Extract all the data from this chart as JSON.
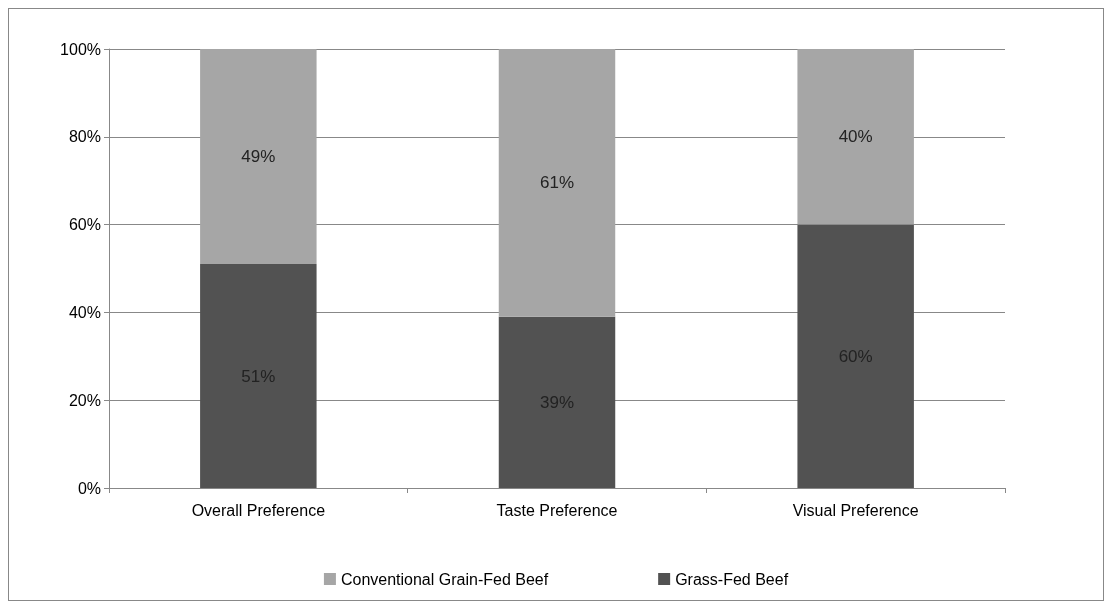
{
  "chart_data": {
    "type": "bar",
    "stacked": true,
    "categories": [
      "Overall Preference",
      "Taste Preference",
      "Visual Preference"
    ],
    "series": [
      {
        "name": "Grass-Fed Beef",
        "color": "#525252",
        "values": [
          51,
          39,
          60
        ]
      },
      {
        "name": "Conventional Grain-Fed Beef",
        "color": "#a6a6a6",
        "values": [
          49,
          61,
          40
        ]
      }
    ],
    "value_labels": [
      [
        "51%",
        "39%",
        "60%"
      ],
      [
        "49%",
        "61%",
        "40%"
      ]
    ],
    "ylim": [
      0,
      100
    ],
    "yticks": [
      {
        "value": 0,
        "label": "0%"
      },
      {
        "value": 20,
        "label": "20%"
      },
      {
        "value": 40,
        "label": "40%"
      },
      {
        "value": 60,
        "label": "60%"
      },
      {
        "value": 80,
        "label": "80%"
      },
      {
        "value": 100,
        "label": "100%"
      }
    ],
    "grid": "y",
    "legend": "bottom"
  }
}
